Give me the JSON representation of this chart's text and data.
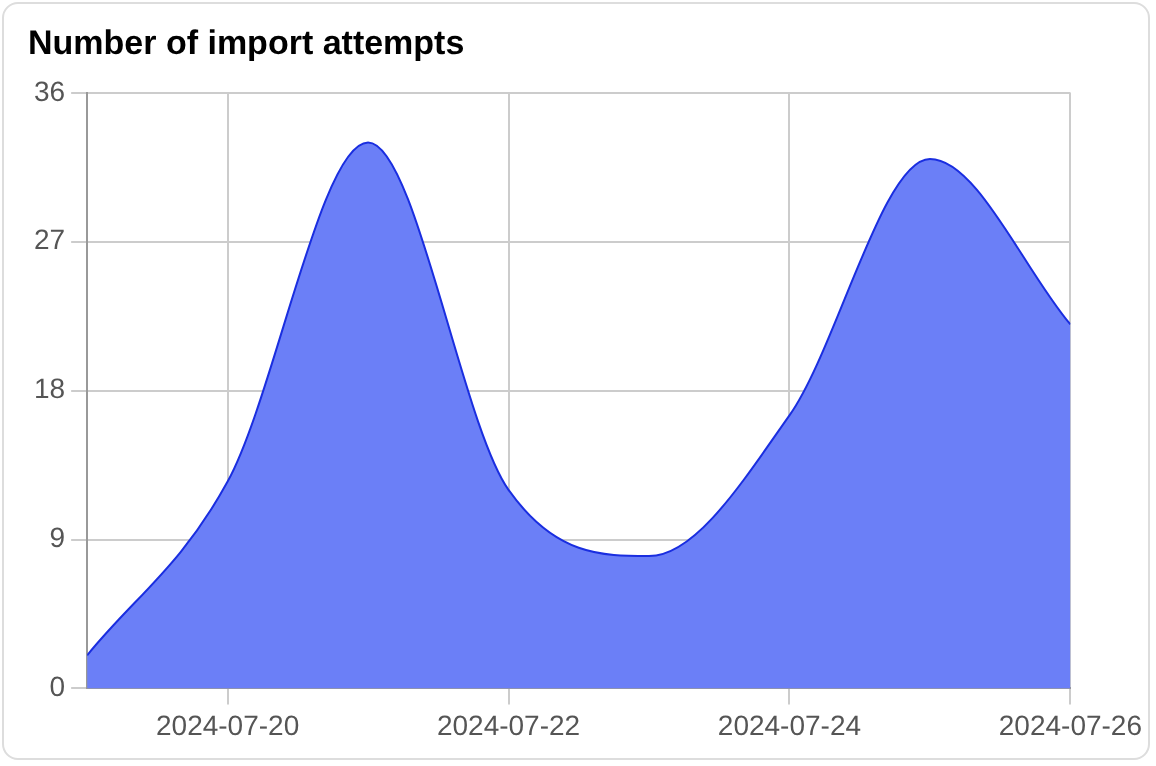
{
  "chart_data": {
    "type": "area",
    "title": "Number of import attempts",
    "x": [
      "2024-07-19",
      "2024-07-20",
      "2024-07-21",
      "2024-07-22",
      "2024-07-23",
      "2024-07-24",
      "2024-07-25",
      "2024-07-26"
    ],
    "series": [
      {
        "color": "#6b7ff7",
        "values": [
          2,
          12.5,
          33,
          12,
          8,
          16.5,
          32,
          22
        ]
      }
    ],
    "xlim": [
      "2024-07-19",
      "2024-07-26"
    ],
    "xticks": [
      "2024-07-20",
      "2024-07-22",
      "2024-07-24",
      "2024-07-26"
    ],
    "ylim": [
      0,
      36
    ],
    "yticks": [
      0,
      9,
      18,
      27,
      36
    ],
    "grid": true,
    "legend": false
  }
}
